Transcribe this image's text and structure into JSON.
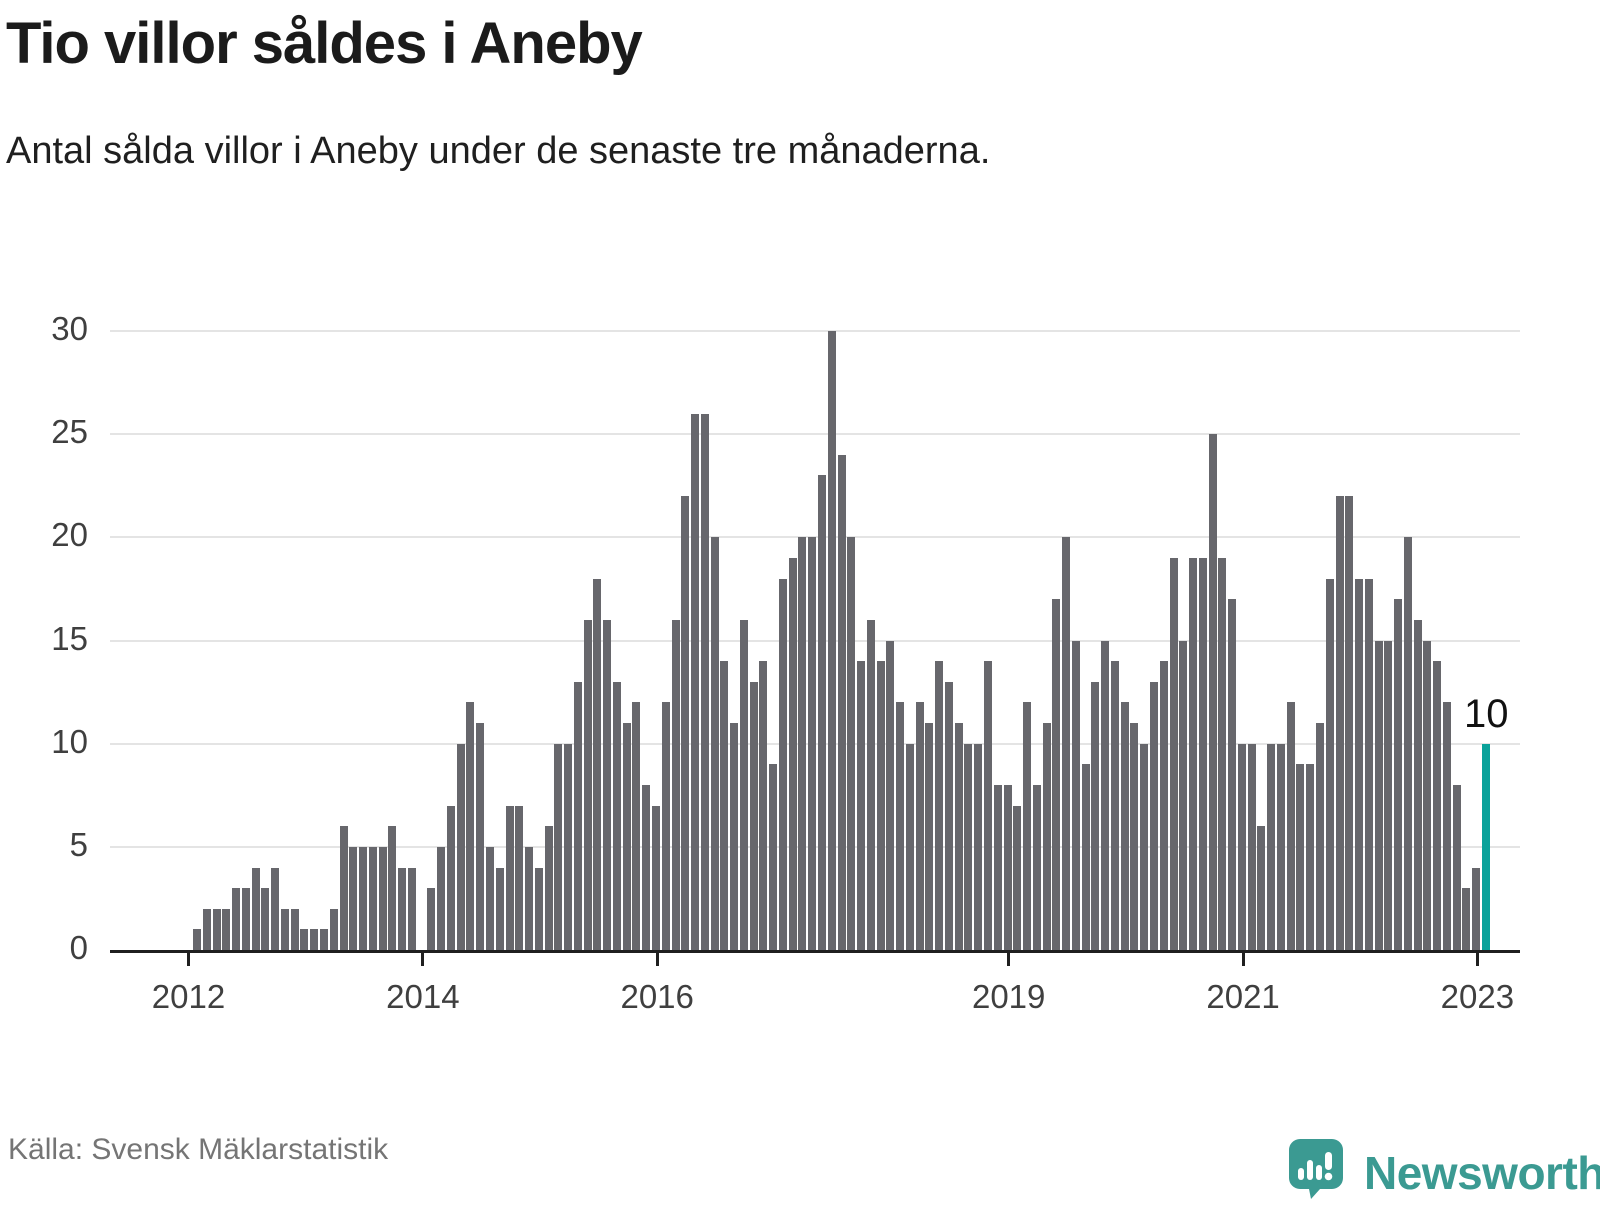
{
  "title": "Tio villor såldes i Aneby",
  "subtitle": "Antal sålda villor i Aneby under de senaste tre månaderna.",
  "source": "Källa: Svensk Mäklarstatistik",
  "brand": {
    "name": "Newsworthy",
    "color": "#3b9a92"
  },
  "annotation": {
    "last_value_label": "10"
  },
  "colors": {
    "bar": "#67676c",
    "highlight": "#0aa29a",
    "grid": "#e4e4e4",
    "axis": "#1f1f1f",
    "text": "#1b1b1b",
    "muted": "#757575"
  },
  "chart_data": {
    "type": "bar",
    "title": "Tio villor såldes i Aneby",
    "subtitle": "Antal sålda villor i Aneby under de senaste tre månaderna.",
    "xlabel": "",
    "ylabel": "",
    "x_start": "2012-01",
    "x_interval": "monthly",
    "x_end": "2023-01",
    "ylim": [
      0,
      30
    ],
    "y_ticks": [
      0,
      5,
      10,
      15,
      20,
      25,
      30
    ],
    "grid": "horizontal",
    "x_tick_labels": [
      "2012",
      "2014",
      "2016",
      "2019",
      "2021",
      "2023"
    ],
    "x_tick_indices": [
      0,
      24,
      48,
      84,
      108,
      132
    ],
    "highlight_index": 132,
    "highlight_value": 10,
    "values": [
      1,
      2,
      2,
      2,
      3,
      3,
      4,
      3,
      4,
      2,
      2,
      1,
      1,
      1,
      2,
      6,
      5,
      5,
      5,
      5,
      6,
      4,
      4,
      0,
      3,
      5,
      7,
      10,
      12,
      11,
      5,
      4,
      7,
      7,
      5,
      4,
      6,
      10,
      10,
      13,
      16,
      18,
      16,
      13,
      11,
      12,
      8,
      7,
      12,
      16,
      22,
      26,
      26,
      20,
      14,
      11,
      16,
      13,
      14,
      9,
      18,
      19,
      20,
      20,
      23,
      30,
      24,
      20,
      14,
      16,
      14,
      15,
      12,
      10,
      12,
      11,
      14,
      13,
      11,
      10,
      10,
      14,
      8,
      8,
      7,
      12,
      8,
      11,
      17,
      20,
      15,
      9,
      13,
      15,
      14,
      12,
      11,
      10,
      13,
      14,
      19,
      15,
      19,
      19,
      25,
      19,
      17,
      10,
      10,
      6,
      10,
      10,
      12,
      9,
      9,
      11,
      18,
      22,
      22,
      18,
      18,
      15,
      15,
      17,
      20,
      16,
      15,
      14,
      12,
      8,
      3,
      4,
      10
    ]
  }
}
